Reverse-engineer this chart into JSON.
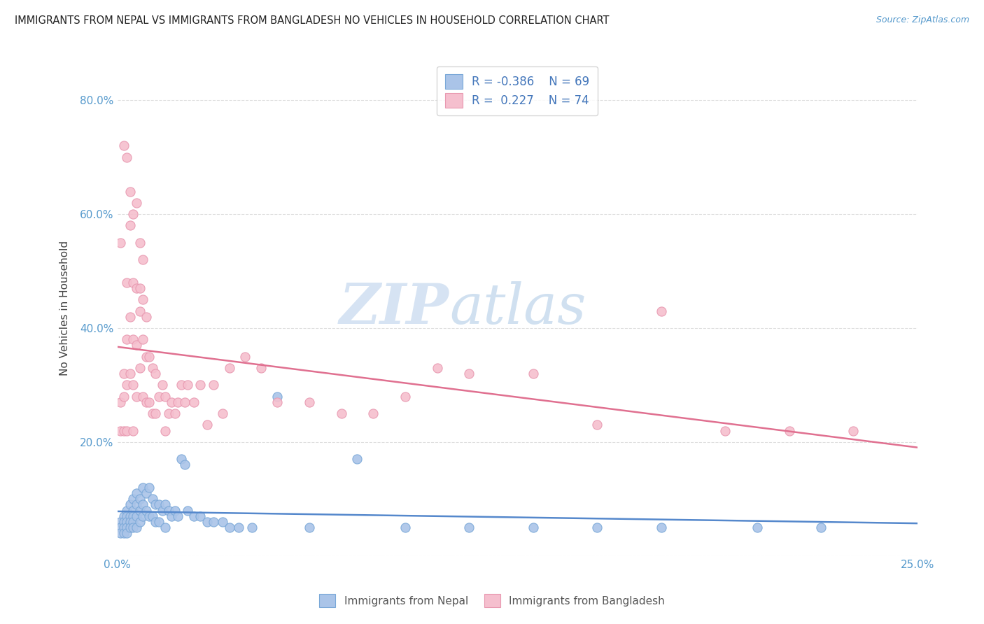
{
  "title": "IMMIGRANTS FROM NEPAL VS IMMIGRANTS FROM BANGLADESH NO VEHICLES IN HOUSEHOLD CORRELATION CHART",
  "source": "Source: ZipAtlas.com",
  "ylabel": "No Vehicles in Household",
  "xlim": [
    0.0,
    0.25
  ],
  "ylim": [
    0.0,
    0.87
  ],
  "nepal_color": "#aac4e8",
  "nepal_edge": "#7aa8d8",
  "bangladesh_color": "#f5bfce",
  "bangladesh_edge": "#e898b0",
  "nepal_R": -0.386,
  "nepal_N": 69,
  "bangladesh_R": 0.227,
  "bangladesh_N": 74,
  "nepal_line_color": "#5588cc",
  "bangladesh_line_color": "#e07090",
  "watermark_zip": "ZIP",
  "watermark_atlas": "atlas",
  "background_color": "#ffffff",
  "grid_color": "#dddddd",
  "legend_text_color": "#4477bb",
  "axis_label_color": "#5599cc",
  "nepal_scatter_x": [
    0.001,
    0.001,
    0.001,
    0.002,
    0.002,
    0.002,
    0.002,
    0.003,
    0.003,
    0.003,
    0.003,
    0.003,
    0.004,
    0.004,
    0.004,
    0.004,
    0.005,
    0.005,
    0.005,
    0.005,
    0.005,
    0.006,
    0.006,
    0.006,
    0.006,
    0.007,
    0.007,
    0.007,
    0.008,
    0.008,
    0.008,
    0.009,
    0.009,
    0.01,
    0.01,
    0.011,
    0.011,
    0.012,
    0.012,
    0.013,
    0.013,
    0.014,
    0.015,
    0.015,
    0.016,
    0.017,
    0.018,
    0.019,
    0.02,
    0.021,
    0.022,
    0.024,
    0.026,
    0.028,
    0.03,
    0.033,
    0.035,
    0.038,
    0.042,
    0.05,
    0.06,
    0.075,
    0.09,
    0.11,
    0.13,
    0.15,
    0.17,
    0.2,
    0.22
  ],
  "nepal_scatter_y": [
    0.06,
    0.05,
    0.04,
    0.07,
    0.06,
    0.05,
    0.04,
    0.08,
    0.07,
    0.06,
    0.05,
    0.04,
    0.09,
    0.07,
    0.06,
    0.05,
    0.1,
    0.08,
    0.07,
    0.06,
    0.05,
    0.11,
    0.09,
    0.07,
    0.05,
    0.1,
    0.08,
    0.06,
    0.12,
    0.09,
    0.07,
    0.11,
    0.08,
    0.12,
    0.07,
    0.1,
    0.07,
    0.09,
    0.06,
    0.09,
    0.06,
    0.08,
    0.09,
    0.05,
    0.08,
    0.07,
    0.08,
    0.07,
    0.17,
    0.16,
    0.08,
    0.07,
    0.07,
    0.06,
    0.06,
    0.06,
    0.05,
    0.05,
    0.05,
    0.28,
    0.05,
    0.17,
    0.05,
    0.05,
    0.05,
    0.05,
    0.05,
    0.05,
    0.05
  ],
  "bangladesh_scatter_x": [
    0.001,
    0.001,
    0.001,
    0.002,
    0.002,
    0.002,
    0.003,
    0.003,
    0.003,
    0.003,
    0.004,
    0.004,
    0.004,
    0.005,
    0.005,
    0.005,
    0.005,
    0.006,
    0.006,
    0.006,
    0.007,
    0.007,
    0.007,
    0.008,
    0.008,
    0.008,
    0.009,
    0.009,
    0.01,
    0.01,
    0.011,
    0.011,
    0.012,
    0.012,
    0.013,
    0.014,
    0.015,
    0.015,
    0.016,
    0.017,
    0.018,
    0.019,
    0.02,
    0.021,
    0.022,
    0.024,
    0.026,
    0.028,
    0.03,
    0.033,
    0.035,
    0.04,
    0.045,
    0.05,
    0.06,
    0.07,
    0.08,
    0.09,
    0.1,
    0.11,
    0.13,
    0.15,
    0.17,
    0.19,
    0.21,
    0.23,
    0.002,
    0.003,
    0.004,
    0.005,
    0.006,
    0.007,
    0.008,
    0.009
  ],
  "bangladesh_scatter_y": [
    0.55,
    0.27,
    0.22,
    0.32,
    0.28,
    0.22,
    0.48,
    0.38,
    0.3,
    0.22,
    0.58,
    0.42,
    0.32,
    0.48,
    0.38,
    0.3,
    0.22,
    0.47,
    0.37,
    0.28,
    0.47,
    0.43,
    0.33,
    0.45,
    0.38,
    0.28,
    0.35,
    0.27,
    0.35,
    0.27,
    0.33,
    0.25,
    0.32,
    0.25,
    0.28,
    0.3,
    0.28,
    0.22,
    0.25,
    0.27,
    0.25,
    0.27,
    0.3,
    0.27,
    0.3,
    0.27,
    0.3,
    0.23,
    0.3,
    0.25,
    0.33,
    0.35,
    0.33,
    0.27,
    0.27,
    0.25,
    0.25,
    0.28,
    0.33,
    0.32,
    0.32,
    0.23,
    0.43,
    0.22,
    0.22,
    0.22,
    0.72,
    0.7,
    0.64,
    0.6,
    0.62,
    0.55,
    0.52,
    0.42
  ]
}
